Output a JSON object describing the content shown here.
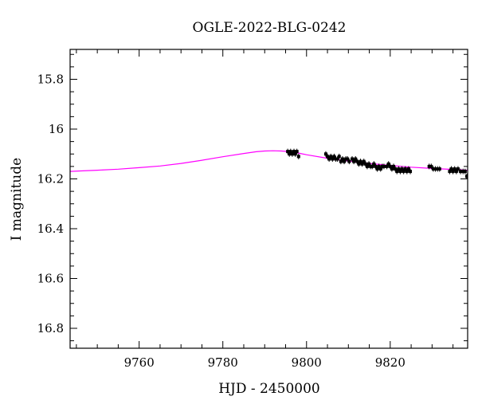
{
  "chart_data": {
    "type": "scatter",
    "title": "OGLE-2022-BLG-0242",
    "xlabel": "HJD - 2450000",
    "ylabel": "I magnitude",
    "xlim": [
      9743.5,
      9838.5
    ],
    "ylim": [
      16.88,
      15.68
    ],
    "y_inverted": true,
    "grid": false,
    "x_ticks": [
      9760,
      9780,
      9800,
      9820
    ],
    "y_ticks": [
      15.8,
      16,
      16.2,
      16.4,
      16.6,
      16.8
    ],
    "x_minor_step": 5,
    "y_minor_step": 0.05,
    "series": [
      {
        "kind": "points",
        "color": "#000000",
        "x": [
          9795.5,
          9795.9,
          9796.2,
          9796.6,
          9797.0,
          9797.3,
          9797.7,
          9798.1,
          9804.6,
          9805.0,
          9805.4,
          9805.8,
          9806.2,
          9806.6,
          9807.0,
          9807.4,
          9807.8,
          9808.2,
          9808.6,
          9809.0,
          9809.4,
          9809.8,
          9810.2,
          9810.9,
          9811.3,
          9811.7,
          9812.1,
          9812.5,
          9812.9,
          9813.3,
          9813.7,
          9814.1,
          9814.5,
          9814.9,
          9815.3,
          9815.7,
          9816.1,
          9816.5,
          9816.9,
          9817.3,
          9817.7,
          9818.1,
          9818.5,
          9819.2,
          9819.6,
          9820.0,
          9820.4,
          9820.8,
          9821.2,
          9821.6,
          9822.0,
          9822.4,
          9822.8,
          9823.2,
          9823.6,
          9824.0,
          9824.4,
          9824.8,
          9829.3,
          9829.8,
          9830.3,
          9830.8,
          9831.3,
          9831.8,
          9834.2,
          9834.6,
          9835.0,
          9835.4,
          9835.8,
          9836.2,
          9836.8,
          9837.4,
          9837.9,
          9838.3
        ],
        "y": [
          16.09,
          16.1,
          16.09,
          16.1,
          16.09,
          16.1,
          16.09,
          16.11,
          16.1,
          16.11,
          16.12,
          16.11,
          16.12,
          16.11,
          16.12,
          16.12,
          16.11,
          16.13,
          16.12,
          16.13,
          16.12,
          16.12,
          16.13,
          16.12,
          16.13,
          16.12,
          16.13,
          16.14,
          16.13,
          16.14,
          16.13,
          16.14,
          16.15,
          16.14,
          16.15,
          16.15,
          16.14,
          16.15,
          16.16,
          16.15,
          16.16,
          16.15,
          16.15,
          16.15,
          16.14,
          16.15,
          16.16,
          16.15,
          16.16,
          16.17,
          16.16,
          16.17,
          16.16,
          16.17,
          16.16,
          16.17,
          16.16,
          16.17,
          16.15,
          16.15,
          16.16,
          16.16,
          16.16,
          16.16,
          16.17,
          16.16,
          16.17,
          16.16,
          16.17,
          16.16,
          16.17,
          16.17,
          16.17,
          16.19
        ]
      },
      {
        "kind": "model-line",
        "color": "#ff00ff",
        "x": [
          9743.5,
          9746,
          9750,
          9755,
          9760,
          9765,
          9770,
          9775,
          9780,
          9785,
          9788,
          9790,
          9792,
          9794,
          9796,
          9798,
          9800,
          9805,
          9810,
          9815,
          9820,
          9825,
          9830,
          9835,
          9838.5
        ],
        "y": [
          16.17,
          16.168,
          16.165,
          16.161,
          16.155,
          16.148,
          16.138,
          16.125,
          16.111,
          16.098,
          16.091,
          16.088,
          16.087,
          16.088,
          16.091,
          16.096,
          16.103,
          16.117,
          16.128,
          16.138,
          16.146,
          16.153,
          16.158,
          16.162,
          16.165
        ]
      }
    ]
  }
}
